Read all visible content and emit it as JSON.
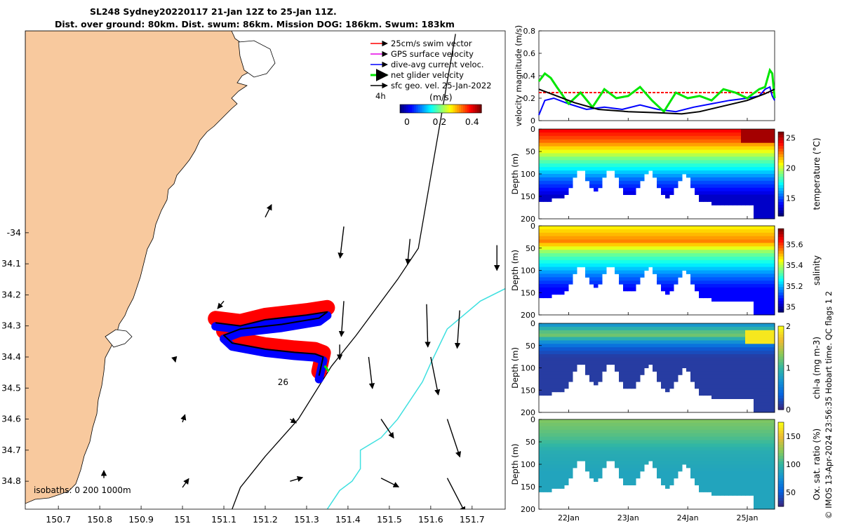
{
  "title": {
    "line1": "SL248 Sydney20220117 21-Jan 12Z to 25-Jan 11Z.",
    "line2": "Dist. over ground: 80km. Dist. swum: 86km. Mission DOG: 186km. Swum: 183km"
  },
  "colors": {
    "land": "#f8c99e",
    "swim": "#ff0000",
    "gps": "#e600e6",
    "dive_avg": "#0000ff",
    "net": "#00e600",
    "sfc_geo": "#000000",
    "isobath200": "#000000",
    "isobath1000": "#3ee0e0"
  },
  "chart_data": [
    {
      "type": "scatter",
      "name": "map",
      "xlim": [
        150.62,
        151.78
      ],
      "ylim": [
        -34.89,
        -33.35
      ],
      "x_ticks": [
        "150.7",
        "150.8",
        "150.9",
        "151",
        "151.1",
        "151.2",
        "151.3",
        "151.4",
        "151.5",
        "151.6",
        "151.7"
      ],
      "x_tick_values": [
        150.7,
        150.8,
        150.9,
        151.0,
        151.1,
        151.2,
        151.3,
        151.4,
        151.5,
        151.6,
        151.7
      ],
      "y_ticks": [
        "-34",
        "34.1",
        "34.2",
        "34.3",
        "34.4",
        "34.5",
        "34.6",
        "34.7",
        "34.8"
      ],
      "y_tick_values": [
        -34.0,
        -34.1,
        -34.2,
        -34.3,
        -34.4,
        -34.5,
        -34.6,
        -34.7,
        -34.8
      ],
      "legend": [
        {
          "label": "25cm/s swim vector",
          "key": "swim"
        },
        {
          "label": "GPS surface velocity",
          "key": "gps"
        },
        {
          "label": "dive-avg current veloc.",
          "key": "dive_avg"
        },
        {
          "label": "net glider velocity",
          "key": "net"
        },
        {
          "label": "sfc geo. vel. 25-Jan-2022",
          "key": "sfc_geo"
        }
      ],
      "colorbar": {
        "label": "(m/s)",
        "prefix": "4h",
        "ticks": [
          "0",
          "0.2",
          "0.4"
        ],
        "tick_values": [
          0,
          0.2,
          0.4
        ],
        "range": [
          0,
          0.5
        ]
      },
      "annotation": {
        "text": "26",
        "lon": 151.23,
        "lat": -34.49
      },
      "isobath_text": "isobaths: 0   200  1000m",
      "glider_track": [
        [
          151.08,
          -34.29
        ],
        [
          151.14,
          -34.3
        ],
        [
          151.2,
          -34.28
        ],
        [
          151.3,
          -34.265
        ],
        [
          151.35,
          -34.255
        ],
        [
          151.33,
          -34.275
        ],
        [
          151.24,
          -34.295
        ],
        [
          151.14,
          -34.31
        ],
        [
          151.1,
          -34.33
        ],
        [
          151.12,
          -34.355
        ],
        [
          151.2,
          -34.375
        ],
        [
          151.27,
          -34.385
        ],
        [
          151.32,
          -34.39
        ],
        [
          151.34,
          -34.4
        ],
        [
          151.335,
          -34.43
        ],
        [
          151.33,
          -34.46
        ]
      ],
      "isobath_200m": [
        [
          151.66,
          -33.36
        ],
        [
          151.57,
          -34.05
        ],
        [
          151.52,
          -34.15
        ],
        [
          151.42,
          -34.33
        ],
        [
          151.36,
          -34.43
        ],
        [
          151.28,
          -34.6
        ],
        [
          151.2,
          -34.72
        ],
        [
          151.14,
          -34.82
        ],
        [
          151.12,
          -34.89
        ]
      ],
      "isobath_1000m": [
        [
          151.78,
          -34.18
        ],
        [
          151.72,
          -34.22
        ],
        [
          151.64,
          -34.31
        ],
        [
          151.6,
          -34.42
        ],
        [
          151.58,
          -34.48
        ],
        [
          151.52,
          -34.6
        ],
        [
          151.48,
          -34.66
        ],
        [
          151.43,
          -34.7
        ],
        [
          151.43,
          -34.76
        ],
        [
          151.41,
          -34.8
        ],
        [
          151.38,
          -34.83
        ],
        [
          151.35,
          -34.89
        ]
      ],
      "current_vectors": [
        {
          "lon": 151.39,
          "lat": -33.98,
          "u": -0.03,
          "v": -0.25
        },
        {
          "lon": 151.55,
          "lat": -34.02,
          "u": -0.02,
          "v": -0.2
        },
        {
          "lon": 151.76,
          "lat": -34.04,
          "u": 0.0,
          "v": -0.2
        },
        {
          "lon": 151.1,
          "lat": -34.22,
          "u": -0.05,
          "v": -0.06
        },
        {
          "lon": 151.39,
          "lat": -34.22,
          "u": -0.02,
          "v": -0.28
        },
        {
          "lon": 151.59,
          "lat": -34.23,
          "u": 0.01,
          "v": -0.34
        },
        {
          "lon": 151.67,
          "lat": -34.25,
          "u": -0.02,
          "v": -0.3
        },
        {
          "lon": 150.98,
          "lat": -34.4,
          "u": 0.01,
          "v": -0.04
        },
        {
          "lon": 151.38,
          "lat": -34.36,
          "u": 0.0,
          "v": -0.12
        },
        {
          "lon": 151.45,
          "lat": -34.4,
          "u": 0.03,
          "v": -0.25
        },
        {
          "lon": 151.6,
          "lat": -34.4,
          "u": 0.06,
          "v": -0.3
        },
        {
          "lon": 151.0,
          "lat": -34.61,
          "u": 0.02,
          "v": 0.06
        },
        {
          "lon": 151.26,
          "lat": -34.6,
          "u": 0.05,
          "v": -0.03
        },
        {
          "lon": 151.48,
          "lat": -34.6,
          "u": 0.1,
          "v": -0.15
        },
        {
          "lon": 151.64,
          "lat": -34.6,
          "u": 0.1,
          "v": -0.3
        },
        {
          "lon": 151.0,
          "lat": -34.82,
          "u": 0.05,
          "v": 0.07
        },
        {
          "lon": 151.26,
          "lat": -34.8,
          "u": 0.1,
          "v": 0.03
        },
        {
          "lon": 151.48,
          "lat": -34.79,
          "u": 0.14,
          "v": -0.07
        },
        {
          "lon": 151.64,
          "lat": -34.79,
          "u": 0.14,
          "v": -0.27
        },
        {
          "lon": 150.81,
          "lat": -34.79,
          "u": 0.0,
          "v": 0.06
        },
        {
          "lon": 151.2,
          "lat": -33.95,
          "u": 0.05,
          "v": 0.1
        }
      ]
    },
    {
      "type": "line",
      "name": "velocity",
      "ylabel": "velocity magnitude (m/s)",
      "ylim": [
        0,
        0.8
      ],
      "y_ticks": [
        "0",
        "0.2",
        "0.4",
        "0.6",
        "0.8"
      ],
      "y_tick_values": [
        0,
        0.2,
        0.4,
        0.6,
        0.8
      ],
      "xlim": [
        21.5,
        25.46
      ],
      "series": [
        {
          "name": "swim",
          "color_key": "swim",
          "x": [
            21.5,
            25.46
          ],
          "y": [
            0.25,
            0.25
          ]
        },
        {
          "name": "dive-avg current",
          "color_key": "dive_avg",
          "x": [
            21.5,
            21.6,
            21.75,
            22.0,
            22.3,
            22.6,
            22.9,
            23.2,
            23.5,
            23.8,
            24.1,
            24.4,
            24.7,
            25.0,
            25.2,
            25.3,
            25.38,
            25.42,
            25.46
          ],
          "y": [
            0.05,
            0.18,
            0.2,
            0.15,
            0.1,
            0.12,
            0.1,
            0.14,
            0.1,
            0.08,
            0.12,
            0.15,
            0.18,
            0.2,
            0.22,
            0.28,
            0.3,
            0.22,
            0.18
          ]
        },
        {
          "name": "net glider",
          "color_key": "net",
          "x": [
            21.5,
            21.6,
            21.7,
            21.8,
            22.0,
            22.2,
            22.4,
            22.6,
            22.8,
            23.0,
            23.2,
            23.4,
            23.6,
            23.8,
            24.0,
            24.2,
            24.4,
            24.6,
            24.8,
            25.0,
            25.2,
            25.3,
            25.38,
            25.42,
            25.46
          ],
          "y": [
            0.35,
            0.42,
            0.38,
            0.3,
            0.15,
            0.25,
            0.12,
            0.28,
            0.2,
            0.22,
            0.3,
            0.18,
            0.08,
            0.25,
            0.2,
            0.22,
            0.18,
            0.28,
            0.25,
            0.2,
            0.28,
            0.3,
            0.45,
            0.42,
            0.2
          ]
        },
        {
          "name": "sfc geo",
          "color_key": "sfc_geo",
          "x": [
            21.5,
            21.8,
            22.1,
            22.5,
            23.0,
            23.5,
            23.9,
            24.2,
            24.6,
            25.0,
            25.3,
            25.46
          ],
          "y": [
            0.28,
            0.22,
            0.16,
            0.1,
            0.08,
            0.07,
            0.06,
            0.08,
            0.13,
            0.18,
            0.24,
            0.28
          ]
        }
      ]
    },
    {
      "type": "heatmap",
      "name": "temperature",
      "ylabel": "Depth (m)",
      "cbar_label": "temperature (°C)",
      "cbar_ticks": [
        "15",
        "20",
        "25"
      ],
      "cbar_tick_values": [
        15,
        20,
        25
      ],
      "crange": [
        12,
        26
      ],
      "ylim": [
        200,
        0
      ],
      "y_ticks": [
        "0",
        "50",
        "100",
        "150",
        "200"
      ],
      "y_tick_values": [
        0,
        50,
        100,
        150,
        200
      ],
      "surface": 25,
      "deep": 12,
      "bands": [
        [
          0,
          24.5
        ],
        [
          25,
          23
        ],
        [
          45,
          21
        ],
        [
          65,
          19
        ],
        [
          90,
          17
        ],
        [
          115,
          15
        ],
        [
          150,
          13
        ]
      ]
    },
    {
      "type": "heatmap",
      "name": "salinity",
      "ylabel": "Depth (m)",
      "cbar_label": "salinity",
      "cbar_ticks": [
        "35",
        "35.2",
        "35.4",
        "35.6"
      ],
      "cbar_tick_values": [
        35,
        35.2,
        35.4,
        35.6
      ],
      "crange": [
        34.95,
        35.75
      ],
      "ylim": [
        200,
        0
      ],
      "y_ticks": [
        "0",
        "50",
        "100",
        "150",
        "200"
      ],
      "y_tick_values": [
        0,
        50,
        100,
        150,
        200
      ],
      "bands": [
        [
          0,
          35.45
        ],
        [
          35,
          35.55
        ],
        [
          60,
          35.35
        ],
        [
          85,
          35.25
        ],
        [
          110,
          35.15
        ],
        [
          140,
          35.05
        ]
      ]
    },
    {
      "type": "heatmap",
      "name": "chla",
      "ylabel": "Depth (m)",
      "cbar_label": "chl-a (mg m-3)",
      "cbar_ticks": [
        "0",
        "1",
        "2"
      ],
      "cbar_tick_values": [
        0,
        1,
        2
      ],
      "crange": [
        0,
        2
      ],
      "ylim": [
        200,
        0
      ],
      "y_ticks": [
        "0",
        "50",
        "100",
        "150",
        "200"
      ],
      "y_tick_values": [
        0,
        50,
        100,
        150,
        200
      ],
      "bands": [
        [
          0,
          0.6
        ],
        [
          25,
          1.3
        ],
        [
          40,
          0.7
        ],
        [
          55,
          0.3
        ],
        [
          75,
          0.1
        ]
      ]
    },
    {
      "type": "heatmap",
      "name": "oxygen",
      "ylabel": "Depth (m)",
      "cbar_label": "Ox. sat. ratio (%)",
      "cbar_ticks": [
        "50",
        "100",
        "150"
      ],
      "cbar_tick_values": [
        50,
        100,
        150
      ],
      "crange": [
        25,
        175
      ],
      "ylim": [
        200,
        0
      ],
      "y_ticks": [
        "0",
        "50",
        "100",
        "150",
        "200"
      ],
      "y_tick_values": [
        0,
        50,
        100,
        150,
        200
      ],
      "bands": [
        [
          0,
          122
        ],
        [
          40,
          108
        ],
        [
          70,
          92
        ],
        [
          120,
          86
        ]
      ]
    }
  ],
  "time_axis": {
    "ticks": [
      "22Jan",
      "23Jan",
      "24Jan",
      "25Jan"
    ],
    "tick_values": [
      22,
      23,
      24,
      25
    ]
  },
  "side_note": "© IMOS 13-Apr-2024 23:56:35 Hobart time. QC flags 1  2"
}
